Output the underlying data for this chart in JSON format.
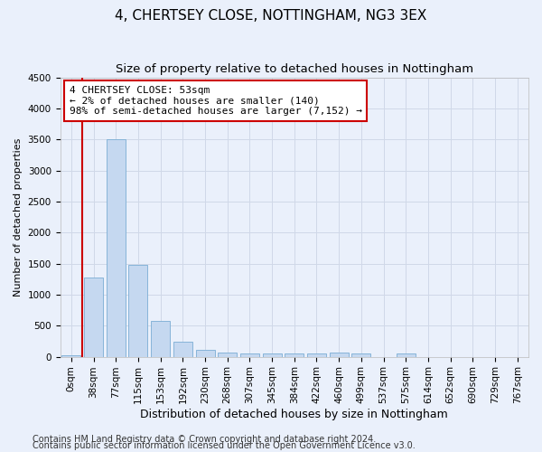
{
  "title1": "4, CHERTSEY CLOSE, NOTTINGHAM, NG3 3EX",
  "title2": "Size of property relative to detached houses in Nottingham",
  "xlabel": "Distribution of detached houses by size in Nottingham",
  "ylabel": "Number of detached properties",
  "categories": [
    "0sqm",
    "38sqm",
    "77sqm",
    "115sqm",
    "153sqm",
    "192sqm",
    "230sqm",
    "268sqm",
    "307sqm",
    "345sqm",
    "384sqm",
    "422sqm",
    "460sqm",
    "499sqm",
    "537sqm",
    "575sqm",
    "614sqm",
    "652sqm",
    "690sqm",
    "729sqm",
    "767sqm"
  ],
  "values": [
    30,
    1280,
    3500,
    1480,
    570,
    240,
    110,
    70,
    55,
    50,
    50,
    50,
    70,
    50,
    0,
    55,
    0,
    0,
    0,
    0,
    0
  ],
  "bar_color": "#c5d8f0",
  "bar_edge_color": "#7aadd4",
  "vline_x_pos": 0.5,
  "vline_color": "#cc0000",
  "annotation_line1": "4 CHERTSEY CLOSE: 53sqm",
  "annotation_line2": "← 2% of detached houses are smaller (140)",
  "annotation_line3": "98% of semi-detached houses are larger (7,152) →",
  "annotation_box_color": "#ffffff",
  "annotation_box_edge_color": "#cc0000",
  "ylim": [
    0,
    4500
  ],
  "yticks": [
    0,
    500,
    1000,
    1500,
    2000,
    2500,
    3000,
    3500,
    4000,
    4500
  ],
  "footer1": "Contains HM Land Registry data © Crown copyright and database right 2024.",
  "footer2": "Contains public sector information licensed under the Open Government Licence v3.0.",
  "bg_color": "#eaf0fb",
  "plot_bg_color": "#eaf0fb",
  "grid_color": "#d0d8e8",
  "title1_fontsize": 11,
  "title2_fontsize": 9.5,
  "xlabel_fontsize": 9,
  "ylabel_fontsize": 8,
  "tick_fontsize": 7.5,
  "annotation_fontsize": 8,
  "footer_fontsize": 7
}
